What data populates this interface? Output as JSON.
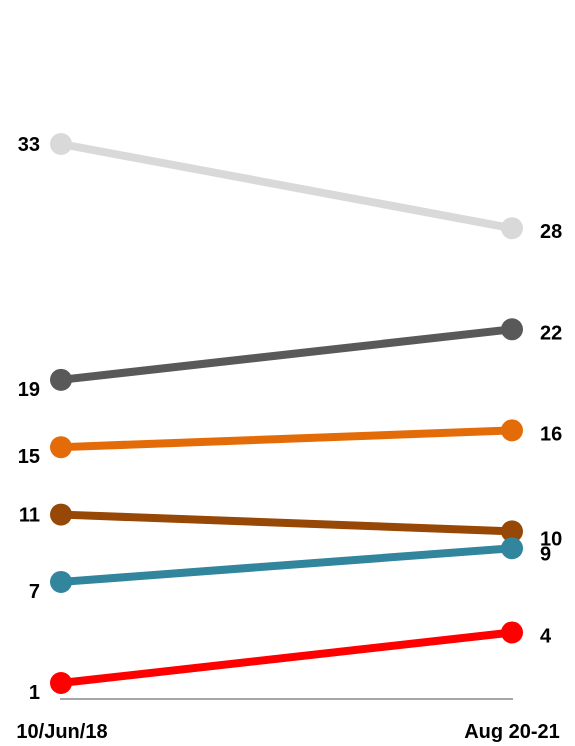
{
  "chart_data": {
    "type": "line",
    "title": "",
    "xlabel": "",
    "ylabel": "",
    "categories": [
      "10/Jun/18",
      "Aug 20-21"
    ],
    "ylim": [
      1,
      33
    ],
    "grid": false,
    "legend": "none",
    "series": [
      {
        "values": [
          33,
          28
        ],
        "labels": [
          "33",
          "28"
        ],
        "color": "#d9d9d9"
      },
      {
        "values": [
          19,
          22
        ],
        "labels": [
          "19",
          "22"
        ],
        "color": "#595959"
      },
      {
        "values": [
          15,
          16
        ],
        "labels": [
          "15",
          "16"
        ],
        "color": "#e36c09"
      },
      {
        "values": [
          11,
          10
        ],
        "labels": [
          "11",
          "10"
        ],
        "color": "#974806"
      },
      {
        "values": [
          7,
          9
        ],
        "labels": [
          "7",
          "9"
        ],
        "color": "#31859c"
      },
      {
        "values": [
          1,
          4
        ],
        "labels": [
          "1",
          "4"
        ],
        "color": "#ff0000"
      }
    ]
  }
}
